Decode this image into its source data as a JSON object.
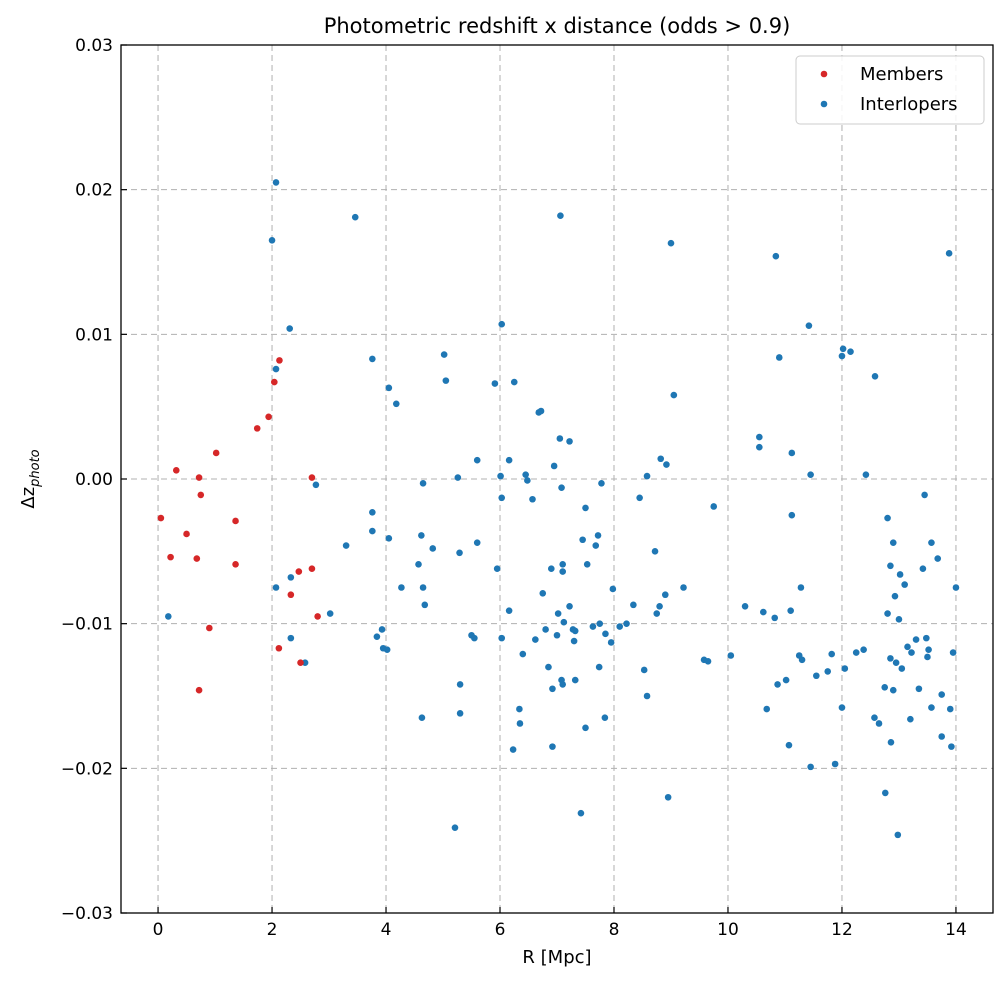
{
  "chart_data": {
    "type": "scatter",
    "title": "Photometric redshift x distance (odds > 0.9)",
    "xlabel": "R [Mpc]",
    "ylabel_base": "Δz",
    "ylabel_sub": "photo",
    "xlim": [
      -0.65,
      14.65
    ],
    "ylim": [
      -0.03,
      0.03
    ],
    "xticks": [
      0,
      2,
      4,
      6,
      8,
      10,
      12,
      14
    ],
    "xtick_labels": [
      "0",
      "2",
      "4",
      "6",
      "8",
      "10",
      "12",
      "14"
    ],
    "yticks": [
      -0.03,
      -0.02,
      -0.01,
      0.0,
      0.01,
      0.02,
      0.03
    ],
    "ytick_labels": [
      "−0.03",
      "−0.02",
      "−0.01",
      "0.00",
      "0.01",
      "0.02",
      "0.03"
    ],
    "grid": true,
    "legend_position": "top-right",
    "series": [
      {
        "name": "Members",
        "color": "#d62728",
        "points": [
          [
            0.05,
            -0.0027
          ],
          [
            0.22,
            -0.0054
          ],
          [
            0.32,
            0.0006
          ],
          [
            0.5,
            -0.0038
          ],
          [
            0.68,
            -0.0055
          ],
          [
            0.72,
            0.0001
          ],
          [
            0.75,
            -0.0011
          ],
          [
            0.72,
            -0.0146
          ],
          [
            0.9,
            -0.0103
          ],
          [
            1.02,
            0.0018
          ],
          [
            1.36,
            -0.0029
          ],
          [
            1.36,
            -0.0059
          ],
          [
            1.74,
            0.0035
          ],
          [
            1.94,
            0.0043
          ],
          [
            2.04,
            0.0067
          ],
          [
            2.13,
            0.0082
          ],
          [
            2.12,
            -0.0117
          ],
          [
            2.33,
            -0.008
          ],
          [
            2.47,
            -0.0064
          ],
          [
            2.5,
            -0.0127
          ],
          [
            2.7,
            -0.0062
          ],
          [
            2.7,
            0.0001
          ],
          [
            2.8,
            -0.0095
          ]
        ]
      },
      {
        "name": "Interlopers",
        "color": "#1f77b4",
        "points": [
          [
            0.18,
            -0.0095
          ],
          [
            2.0,
            0.0165
          ],
          [
            2.07,
            0.0205
          ],
          [
            2.07,
            0.0076
          ],
          [
            2.07,
            -0.0075
          ],
          [
            2.31,
            0.0104
          ],
          [
            2.33,
            -0.0068
          ],
          [
            2.33,
            -0.011
          ],
          [
            2.58,
            -0.0127
          ],
          [
            2.77,
            -0.0004
          ],
          [
            3.02,
            -0.0093
          ],
          [
            3.3,
            -0.0046
          ],
          [
            3.46,
            0.0181
          ],
          [
            3.76,
            0.0083
          ],
          [
            3.76,
            -0.0023
          ],
          [
            3.76,
            -0.0036
          ],
          [
            3.84,
            -0.0109
          ],
          [
            3.93,
            -0.0104
          ],
          [
            3.95,
            -0.0117
          ],
          [
            4.02,
            -0.0118
          ],
          [
            4.05,
            0.0063
          ],
          [
            4.05,
            -0.0041
          ],
          [
            4.18,
            0.0052
          ],
          [
            4.27,
            -0.0075
          ],
          [
            4.57,
            -0.0059
          ],
          [
            4.62,
            -0.0039
          ],
          [
            4.63,
            -0.0165
          ],
          [
            4.65,
            -0.0003
          ],
          [
            4.65,
            -0.0075
          ],
          [
            4.68,
            -0.0087
          ],
          [
            4.82,
            -0.0048
          ],
          [
            5.02,
            0.0086
          ],
          [
            5.05,
            0.0068
          ],
          [
            5.21,
            -0.0241
          ],
          [
            5.26,
            0.0001
          ],
          [
            5.29,
            -0.0051
          ],
          [
            5.3,
            -0.0142
          ],
          [
            5.3,
            -0.0162
          ],
          [
            5.5,
            -0.0108
          ],
          [
            5.55,
            -0.011
          ],
          [
            5.6,
            0.0013
          ],
          [
            5.6,
            -0.0044
          ],
          [
            5.91,
            0.0066
          ],
          [
            5.95,
            -0.0062
          ],
          [
            6.01,
            0.0002
          ],
          [
            6.03,
            0.0107
          ],
          [
            6.03,
            -0.0013
          ],
          [
            6.03,
            -0.011
          ],
          [
            6.16,
            0.0013
          ],
          [
            6.16,
            -0.0091
          ],
          [
            6.23,
            -0.0187
          ],
          [
            6.25,
            0.0067
          ],
          [
            6.34,
            -0.0159
          ],
          [
            6.35,
            -0.0169
          ],
          [
            6.4,
            -0.0121
          ],
          [
            6.45,
            0.0003
          ],
          [
            6.48,
            -0.0001
          ],
          [
            6.57,
            -0.0014
          ],
          [
            6.62,
            -0.0111
          ],
          [
            6.68,
            0.0046
          ],
          [
            6.72,
            0.0047
          ],
          [
            6.75,
            -0.0079
          ],
          [
            6.8,
            -0.0104
          ],
          [
            6.85,
            -0.013
          ],
          [
            6.9,
            -0.0062
          ],
          [
            6.92,
            -0.0185
          ],
          [
            6.92,
            -0.0145
          ],
          [
            6.95,
            0.0009
          ],
          [
            7.0,
            -0.0108
          ],
          [
            7.02,
            -0.0093
          ],
          [
            7.05,
            0.0028
          ],
          [
            7.06,
            0.0182
          ],
          [
            7.08,
            -0.0006
          ],
          [
            7.08,
            -0.0139
          ],
          [
            7.1,
            -0.0142
          ],
          [
            7.1,
            -0.0059
          ],
          [
            7.1,
            -0.0064
          ],
          [
            7.12,
            -0.0099
          ],
          [
            7.22,
            -0.0088
          ],
          [
            7.22,
            0.0026
          ],
          [
            7.28,
            -0.0104
          ],
          [
            7.3,
            -0.0112
          ],
          [
            7.32,
            -0.0105
          ],
          [
            7.32,
            -0.0139
          ],
          [
            7.42,
            -0.0231
          ],
          [
            7.45,
            -0.0042
          ],
          [
            7.5,
            -0.002
          ],
          [
            7.5,
            -0.0172
          ],
          [
            7.53,
            -0.0059
          ],
          [
            7.63,
            -0.0102
          ],
          [
            7.68,
            -0.0046
          ],
          [
            7.72,
            -0.0039
          ],
          [
            7.74,
            -0.013
          ],
          [
            7.75,
            -0.01
          ],
          [
            7.78,
            -0.0003
          ],
          [
            7.84,
            -0.0165
          ],
          [
            7.85,
            -0.0107
          ],
          [
            7.95,
            -0.0113
          ],
          [
            7.98,
            -0.0076
          ],
          [
            8.1,
            -0.0102
          ],
          [
            8.22,
            -0.01
          ],
          [
            8.34,
            -0.0087
          ],
          [
            8.45,
            -0.0013
          ],
          [
            8.53,
            -0.0132
          ],
          [
            8.58,
            -0.015
          ],
          [
            8.58,
            0.0002
          ],
          [
            8.72,
            -0.005
          ],
          [
            8.75,
            -0.0093
          ],
          [
            8.8,
            -0.0088
          ],
          [
            8.82,
            0.0014
          ],
          [
            8.9,
            -0.008
          ],
          [
            8.92,
            0.001
          ],
          [
            8.95,
            -0.022
          ],
          [
            9.0,
            0.0163
          ],
          [
            9.05,
            0.0058
          ],
          [
            9.22,
            -0.0075
          ],
          [
            9.58,
            -0.0125
          ],
          [
            9.65,
            -0.0126
          ],
          [
            9.75,
            -0.0019
          ],
          [
            10.05,
            -0.0122
          ],
          [
            10.3,
            -0.0088
          ],
          [
            10.55,
            0.0029
          ],
          [
            10.55,
            0.0022
          ],
          [
            10.62,
            -0.0092
          ],
          [
            10.68,
            -0.0159
          ],
          [
            10.82,
            -0.0096
          ],
          [
            10.84,
            0.0154
          ],
          [
            10.87,
            -0.0142
          ],
          [
            10.9,
            0.0084
          ],
          [
            11.02,
            -0.0139
          ],
          [
            11.07,
            -0.0184
          ],
          [
            11.1,
            -0.0091
          ],
          [
            11.12,
            0.0018
          ],
          [
            11.12,
            -0.0025
          ],
          [
            11.25,
            -0.0122
          ],
          [
            11.28,
            -0.0075
          ],
          [
            11.3,
            -0.0125
          ],
          [
            11.42,
            0.0106
          ],
          [
            11.45,
            0.0003
          ],
          [
            11.45,
            -0.0199
          ],
          [
            11.55,
            -0.0136
          ],
          [
            11.75,
            -0.0133
          ],
          [
            11.82,
            -0.0121
          ],
          [
            11.88,
            -0.0197
          ],
          [
            12.0,
            0.0085
          ],
          [
            12.0,
            -0.0158
          ],
          [
            12.02,
            0.009
          ],
          [
            12.05,
            -0.0131
          ],
          [
            12.15,
            0.0088
          ],
          [
            12.25,
            -0.012
          ],
          [
            12.38,
            -0.0118
          ],
          [
            12.42,
            0.0003
          ],
          [
            12.57,
            -0.0165
          ],
          [
            12.58,
            0.0071
          ],
          [
            12.65,
            -0.0169
          ],
          [
            12.75,
            -0.0144
          ],
          [
            12.76,
            -0.0217
          ],
          [
            12.8,
            -0.0027
          ],
          [
            12.8,
            -0.0093
          ],
          [
            12.85,
            -0.006
          ],
          [
            12.85,
            -0.0124
          ],
          [
            12.86,
            -0.0182
          ],
          [
            12.9,
            -0.0044
          ],
          [
            12.9,
            -0.0146
          ],
          [
            12.93,
            -0.0081
          ],
          [
            12.95,
            -0.0127
          ],
          [
            12.98,
            -0.0246
          ],
          [
            13.0,
            -0.0097
          ],
          [
            13.02,
            -0.0066
          ],
          [
            13.05,
            -0.0131
          ],
          [
            13.1,
            -0.0073
          ],
          [
            13.15,
            -0.0116
          ],
          [
            13.2,
            -0.0166
          ],
          [
            13.22,
            -0.012
          ],
          [
            13.3,
            -0.0111
          ],
          [
            13.35,
            -0.0145
          ],
          [
            13.42,
            -0.0062
          ],
          [
            13.45,
            -0.0011
          ],
          [
            13.48,
            -0.011
          ],
          [
            13.5,
            -0.0123
          ],
          [
            13.52,
            -0.0118
          ],
          [
            13.57,
            -0.0044
          ],
          [
            13.57,
            -0.0158
          ],
          [
            13.68,
            -0.0055
          ],
          [
            13.75,
            -0.0149
          ],
          [
            13.75,
            -0.0178
          ],
          [
            13.88,
            0.0156
          ],
          [
            13.9,
            -0.0159
          ],
          [
            13.92,
            -0.0185
          ],
          [
            13.95,
            -0.012
          ],
          [
            14.0,
            -0.0075
          ]
        ]
      }
    ]
  }
}
